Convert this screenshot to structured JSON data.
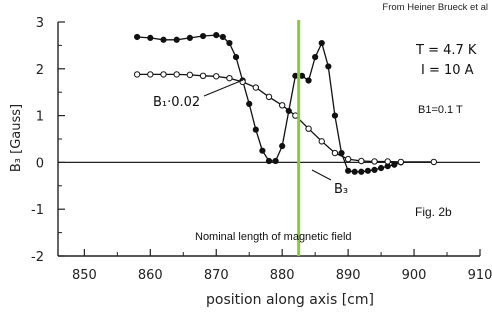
{
  "credit": "From Heiner Brueck et al",
  "chart_data": {
    "type": "line",
    "xlabel": "position along axis [cm]",
    "ylabel": "B₃ [Gauss]",
    "xlim": [
      846,
      910
    ],
    "ylim": [
      -2,
      3
    ],
    "xticks": [
      850,
      860,
      870,
      880,
      890,
      900,
      910
    ],
    "xtick_labels": [
      "850",
      "860",
      "870",
      "880",
      "890",
      "900",
      "910"
    ],
    "yticks": [
      -2,
      -1,
      0,
      1,
      2,
      3
    ],
    "ytick_labels": [
      "-2",
      "-1",
      "0",
      "1",
      "2",
      "3"
    ],
    "grid": false,
    "legend": "none",
    "annotations": {
      "params_T": "T = 4.7 K",
      "params_I": "I = 10 A",
      "b1_note": "B1=0.1 T",
      "fig_label": "Fig. 2b",
      "nominal_label": "Nominal length of magnetic field"
    },
    "nominal_marker_x": 882.5,
    "marker_color": "#8dc63f",
    "series": [
      {
        "name": "B₃",
        "marker": "filled",
        "x": [
          858,
          860,
          862,
          864,
          866,
          868,
          870,
          871,
          872,
          873,
          874,
          875,
          876,
          877,
          878,
          879,
          880,
          881,
          882,
          883,
          884,
          885,
          886,
          887,
          888,
          889,
          890,
          891,
          892,
          893,
          894,
          895,
          896,
          897,
          898
        ],
        "y": [
          2.68,
          2.66,
          2.62,
          2.62,
          2.66,
          2.7,
          2.72,
          2.68,
          2.55,
          2.25,
          1.75,
          1.25,
          0.7,
          0.25,
          0.03,
          0.03,
          0.35,
          1.1,
          1.85,
          1.85,
          1.75,
          2.25,
          2.55,
          2.05,
          1.0,
          0.2,
          -0.18,
          -0.2,
          -0.2,
          -0.18,
          -0.16,
          -0.12,
          -0.08,
          -0.05,
          0.0
        ]
      },
      {
        "name": "B₁·0.02",
        "marker": "open",
        "x": [
          858,
          860,
          862,
          864,
          866,
          868,
          870,
          872,
          874,
          876,
          878,
          880,
          882,
          884,
          886,
          888,
          890,
          892,
          894,
          896,
          898,
          903
        ],
        "y": [
          1.88,
          1.88,
          1.88,
          1.88,
          1.87,
          1.85,
          1.84,
          1.8,
          1.72,
          1.6,
          1.4,
          1.22,
          1.0,
          0.72,
          0.45,
          0.2,
          0.07,
          0.03,
          0.02,
          0.02,
          0.01,
          0.01
        ]
      }
    ]
  }
}
